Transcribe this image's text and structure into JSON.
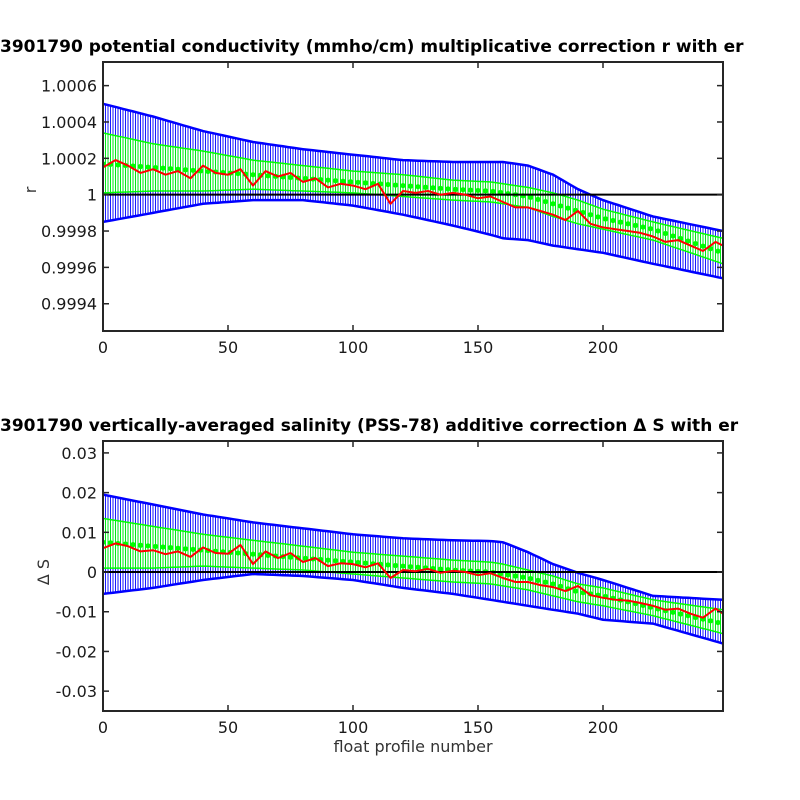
{
  "chart_data": [
    {
      "type": "line",
      "title": "3901790 potential conductivity (mmho/cm) multiplicative correction r with er",
      "xlabel": "",
      "ylabel": "r",
      "xlim": [
        0,
        248
      ],
      "ylim": [
        0.99925,
        1.00073
      ],
      "xticks": [
        0,
        50,
        100,
        150,
        200
      ],
      "xtick_labels": [
        "0",
        "50",
        "100",
        "150",
        "200"
      ],
      "yticks": [
        0.9994,
        0.9996,
        0.9998,
        1,
        1.0002,
        1.0004,
        1.0006
      ],
      "ytick_labels": [
        "0.9994",
        "0.9996",
        "0.9998",
        "1",
        "1.0002",
        "1.0004",
        "1.0006"
      ],
      "reference_line": 1,
      "grid": false,
      "colors": {
        "blue": "#0000ff",
        "green": "#00ff00",
        "red": "#ff0000",
        "ref": "#000000"
      },
      "series": [
        {
          "role": "blue-error-envelope",
          "x": [
            0,
            20,
            40,
            60,
            80,
            100,
            120,
            140,
            155,
            160,
            170,
            180,
            190,
            200,
            220,
            248
          ],
          "center": [
            1.00017,
            1.00015,
            1.00013,
            1.00011,
            1.00009,
            1.00007,
            1.00005,
            1.00003,
            1.00002,
            1.00001,
            0.99999,
            0.99995,
            0.99991,
            0.99987,
            0.99981,
            0.99968
          ],
          "upper": [
            1.0005,
            1.00043,
            1.00035,
            1.00029,
            1.00025,
            1.00022,
            1.00019,
            1.00018,
            1.00018,
            1.00018,
            1.00016,
            1.00011,
            1.00003,
            0.99997,
            0.99988,
            0.9998
          ],
          "lower": [
            0.99985,
            0.9999,
            0.99995,
            0.99997,
            0.99997,
            0.99994,
            0.99989,
            0.99983,
            0.99978,
            0.99976,
            0.99975,
            0.99972,
            0.9997,
            0.99968,
            0.99962,
            0.99954
          ]
        },
        {
          "role": "green-error-envelope",
          "x": [
            0,
            20,
            40,
            60,
            80,
            100,
            120,
            140,
            155,
            160,
            170,
            180,
            190,
            200,
            220,
            248
          ],
          "center": [
            1.00017,
            1.00015,
            1.00013,
            1.00011,
            1.00009,
            1.00007,
            1.00005,
            1.00003,
            1.00002,
            1.00001,
            0.99999,
            0.99995,
            0.99991,
            0.99987,
            0.99981,
            0.99968
          ],
          "upper": [
            1.00034,
            1.00028,
            1.00024,
            1.00019,
            1.00016,
            1.00013,
            1.00011,
            1.00008,
            1.00007,
            1.00006,
            1.00004,
            1.00001,
            0.99997,
            0.99992,
            0.99985,
            0.99976
          ],
          "lower": [
            1.00001,
            1.00002,
            1.00002,
            1.00003,
            1.00002,
            1.00001,
            0.99999,
            0.99997,
            0.99996,
            0.99995,
            0.99993,
            0.99988,
            0.99984,
            0.99981,
            0.99975,
            0.99962
          ]
        },
        {
          "role": "red-observed",
          "x": [
            0,
            5,
            10,
            15,
            20,
            25,
            30,
            35,
            40,
            45,
            50,
            55,
            60,
            65,
            70,
            75,
            80,
            85,
            90,
            95,
            100,
            105,
            110,
            115,
            120,
            125,
            130,
            135,
            140,
            145,
            150,
            155,
            160,
            165,
            170,
            175,
            180,
            185,
            190,
            195,
            200,
            205,
            210,
            215,
            220,
            225,
            230,
            235,
            240,
            245,
            248
          ],
          "y": [
            1.00015,
            1.00019,
            1.00016,
            1.00012,
            1.00014,
            1.00011,
            1.00013,
            1.00009,
            1.00016,
            1.00012,
            1.00011,
            1.00014,
            1.00005,
            1.00013,
            1.0001,
            1.00012,
            1.00007,
            1.00009,
            1.00004,
            1.00006,
            1.00005,
            1.00003,
            1.00006,
            0.99995,
            1.00002,
            1.00001,
            1.00002,
            1.0,
            1.00001,
            1.0,
            0.99998,
            0.99999,
            0.99996,
            0.99993,
            0.99993,
            0.99991,
            0.99989,
            0.99986,
            0.99991,
            0.99984,
            0.99982,
            0.99981,
            0.9998,
            0.99979,
            0.99977,
            0.99974,
            0.99975,
            0.99972,
            0.99969,
            0.99974,
            0.99972
          ]
        }
      ]
    },
    {
      "type": "line",
      "title": "3901790 vertically-averaged salinity (PSS-78) additive correction Δ S with er",
      "xlabel": "float profile number",
      "ylabel": "Δ S",
      "xlim": [
        0,
        248
      ],
      "ylim": [
        -0.035,
        0.033
      ],
      "xticks": [
        0,
        50,
        100,
        150,
        200
      ],
      "xtick_labels": [
        "0",
        "50",
        "100",
        "150",
        "200"
      ],
      "yticks": [
        -0.03,
        -0.02,
        -0.01,
        0,
        0.01,
        0.02,
        0.03
      ],
      "ytick_labels": [
        "-0.03",
        "-0.02",
        "-0.01",
        "0",
        "0.01",
        "0.02",
        "0.03"
      ],
      "reference_line": 0,
      "grid": false,
      "colors": {
        "blue": "#0000ff",
        "green": "#00ff00",
        "red": "#ff0000",
        "ref": "#000000"
      },
      "series": [
        {
          "role": "blue-error-envelope",
          "x": [
            0,
            20,
            40,
            60,
            80,
            100,
            120,
            140,
            155,
            160,
            170,
            180,
            190,
            200,
            220,
            248
          ],
          "center": [
            0.0075,
            0.0065,
            0.0055,
            0.0045,
            0.0035,
            0.0025,
            0.0015,
            0.0005,
            0.0,
            -0.0005,
            -0.0015,
            -0.003,
            -0.005,
            -0.006,
            -0.009,
            -0.013
          ],
          "upper": [
            0.0195,
            0.017,
            0.0145,
            0.0125,
            0.011,
            0.0095,
            0.0085,
            0.008,
            0.0078,
            0.0075,
            0.005,
            0.002,
            -0.0002,
            -0.002,
            -0.006,
            -0.007
          ],
          "lower": [
            -0.0055,
            -0.004,
            -0.002,
            -0.0005,
            -0.001,
            -0.002,
            -0.004,
            -0.0055,
            -0.007,
            -0.0075,
            -0.0085,
            -0.0095,
            -0.0105,
            -0.012,
            -0.013,
            -0.018
          ]
        },
        {
          "role": "green-error-envelope",
          "x": [
            0,
            20,
            40,
            60,
            80,
            100,
            120,
            140,
            155,
            160,
            170,
            180,
            190,
            200,
            220,
            248
          ],
          "center": [
            0.0075,
            0.0065,
            0.0055,
            0.0045,
            0.0035,
            0.0025,
            0.0015,
            0.0005,
            0.0,
            -0.0005,
            -0.0015,
            -0.003,
            -0.005,
            -0.006,
            -0.009,
            -0.013
          ],
          "upper": [
            0.0135,
            0.0115,
            0.0095,
            0.008,
            0.0065,
            0.005,
            0.004,
            0.003,
            0.0025,
            0.002,
            0.0005,
            -0.001,
            -0.003,
            -0.004,
            -0.007,
            -0.0095
          ],
          "lower": [
            0.001,
            0.001,
            0.0015,
            0.001,
            0.0005,
            -0.0005,
            -0.0015,
            -0.0025,
            -0.003,
            -0.0035,
            -0.0045,
            -0.006,
            -0.0075,
            -0.0085,
            -0.011,
            -0.0155
          ]
        },
        {
          "role": "red-observed",
          "x": [
            0,
            5,
            10,
            15,
            20,
            25,
            30,
            35,
            40,
            45,
            50,
            55,
            60,
            65,
            70,
            75,
            80,
            85,
            90,
            95,
            100,
            105,
            110,
            115,
            120,
            125,
            130,
            135,
            140,
            145,
            150,
            155,
            160,
            165,
            170,
            175,
            180,
            185,
            190,
            195,
            200,
            205,
            210,
            215,
            220,
            225,
            230,
            235,
            240,
            245,
            248
          ],
          "y": [
            0.006,
            0.0072,
            0.0065,
            0.0052,
            0.0055,
            0.0045,
            0.0052,
            0.0038,
            0.0062,
            0.0048,
            0.0046,
            0.0068,
            0.002,
            0.0052,
            0.0035,
            0.0048,
            0.0025,
            0.0035,
            0.0015,
            0.0022,
            0.002,
            0.0012,
            0.0022,
            -0.0015,
            0.0005,
            0.0002,
            0.0008,
            -0.0002,
            0.0003,
            0.0,
            -0.0008,
            -0.0003,
            -0.0015,
            -0.0025,
            -0.0025,
            -0.0033,
            -0.0038,
            -0.0048,
            -0.0035,
            -0.0058,
            -0.0065,
            -0.007,
            -0.0072,
            -0.0078,
            -0.0085,
            -0.0095,
            -0.0092,
            -0.0105,
            -0.0115,
            -0.0092,
            -0.0105
          ]
        }
      ]
    }
  ]
}
